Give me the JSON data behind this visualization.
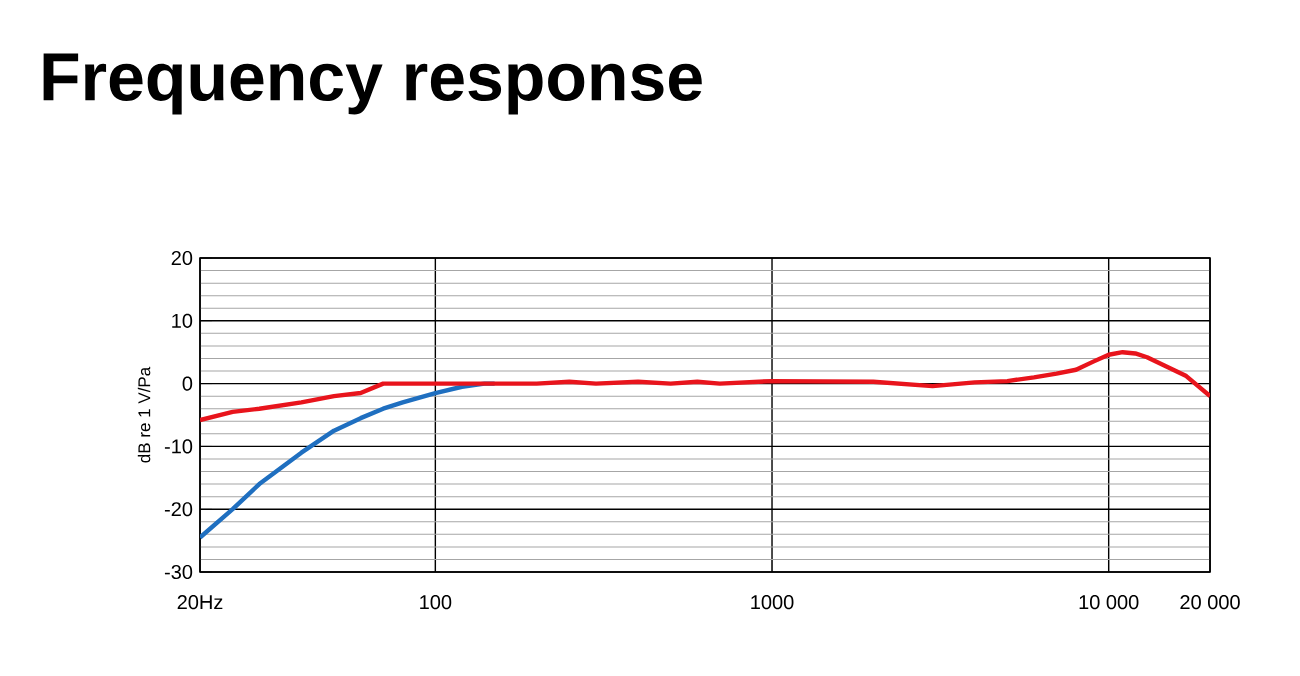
{
  "chart_data": {
    "type": "line",
    "title": "Frequency response",
    "ylabel": "dB re 1 V/Pa",
    "log": "x",
    "grid": true,
    "xlim": [
      20,
      20000
    ],
    "ylim": [
      -30,
      20
    ],
    "xticks": [
      {
        "value": 20,
        "label": "20Hz"
      },
      100,
      1000,
      {
        "value": 10000,
        "label": "10 000"
      },
      {
        "value": 20000,
        "label": "20 000"
      }
    ],
    "yticks": [
      -30,
      -20,
      -10,
      0,
      10,
      20
    ],
    "series": [
      {
        "color": "#1f6fc0",
        "x": [
          20,
          25,
          30,
          40,
          50,
          60,
          70,
          80,
          100,
          120,
          140,
          150
        ],
        "values": [
          -24.5,
          -20,
          -16,
          -11,
          -7.5,
          -5.5,
          -4,
          -3,
          -1.5,
          -0.5,
          0,
          0
        ]
      },
      {
        "color": "#e8141c",
        "x": [
          20,
          25,
          30,
          40,
          50,
          60,
          70,
          80,
          100,
          200,
          250,
          300,
          400,
          500,
          600,
          700,
          1000,
          2000,
          3000,
          4000,
          5000,
          6000,
          7000,
          8000,
          9000,
          10000,
          11000,
          12000,
          13000,
          15000,
          17000,
          20000
        ],
        "values": [
          -5.8,
          -4.5,
          -4,
          -3,
          -2,
          -1.5,
          0,
          0,
          0,
          0,
          0.3,
          0,
          0.3,
          0,
          0.3,
          0,
          0.4,
          0.3,
          -0.4,
          0.2,
          0.4,
          1,
          1.6,
          2.2,
          3.5,
          4.6,
          5,
          4.8,
          4.2,
          2.6,
          1.2,
          -2
        ]
      }
    ]
  }
}
